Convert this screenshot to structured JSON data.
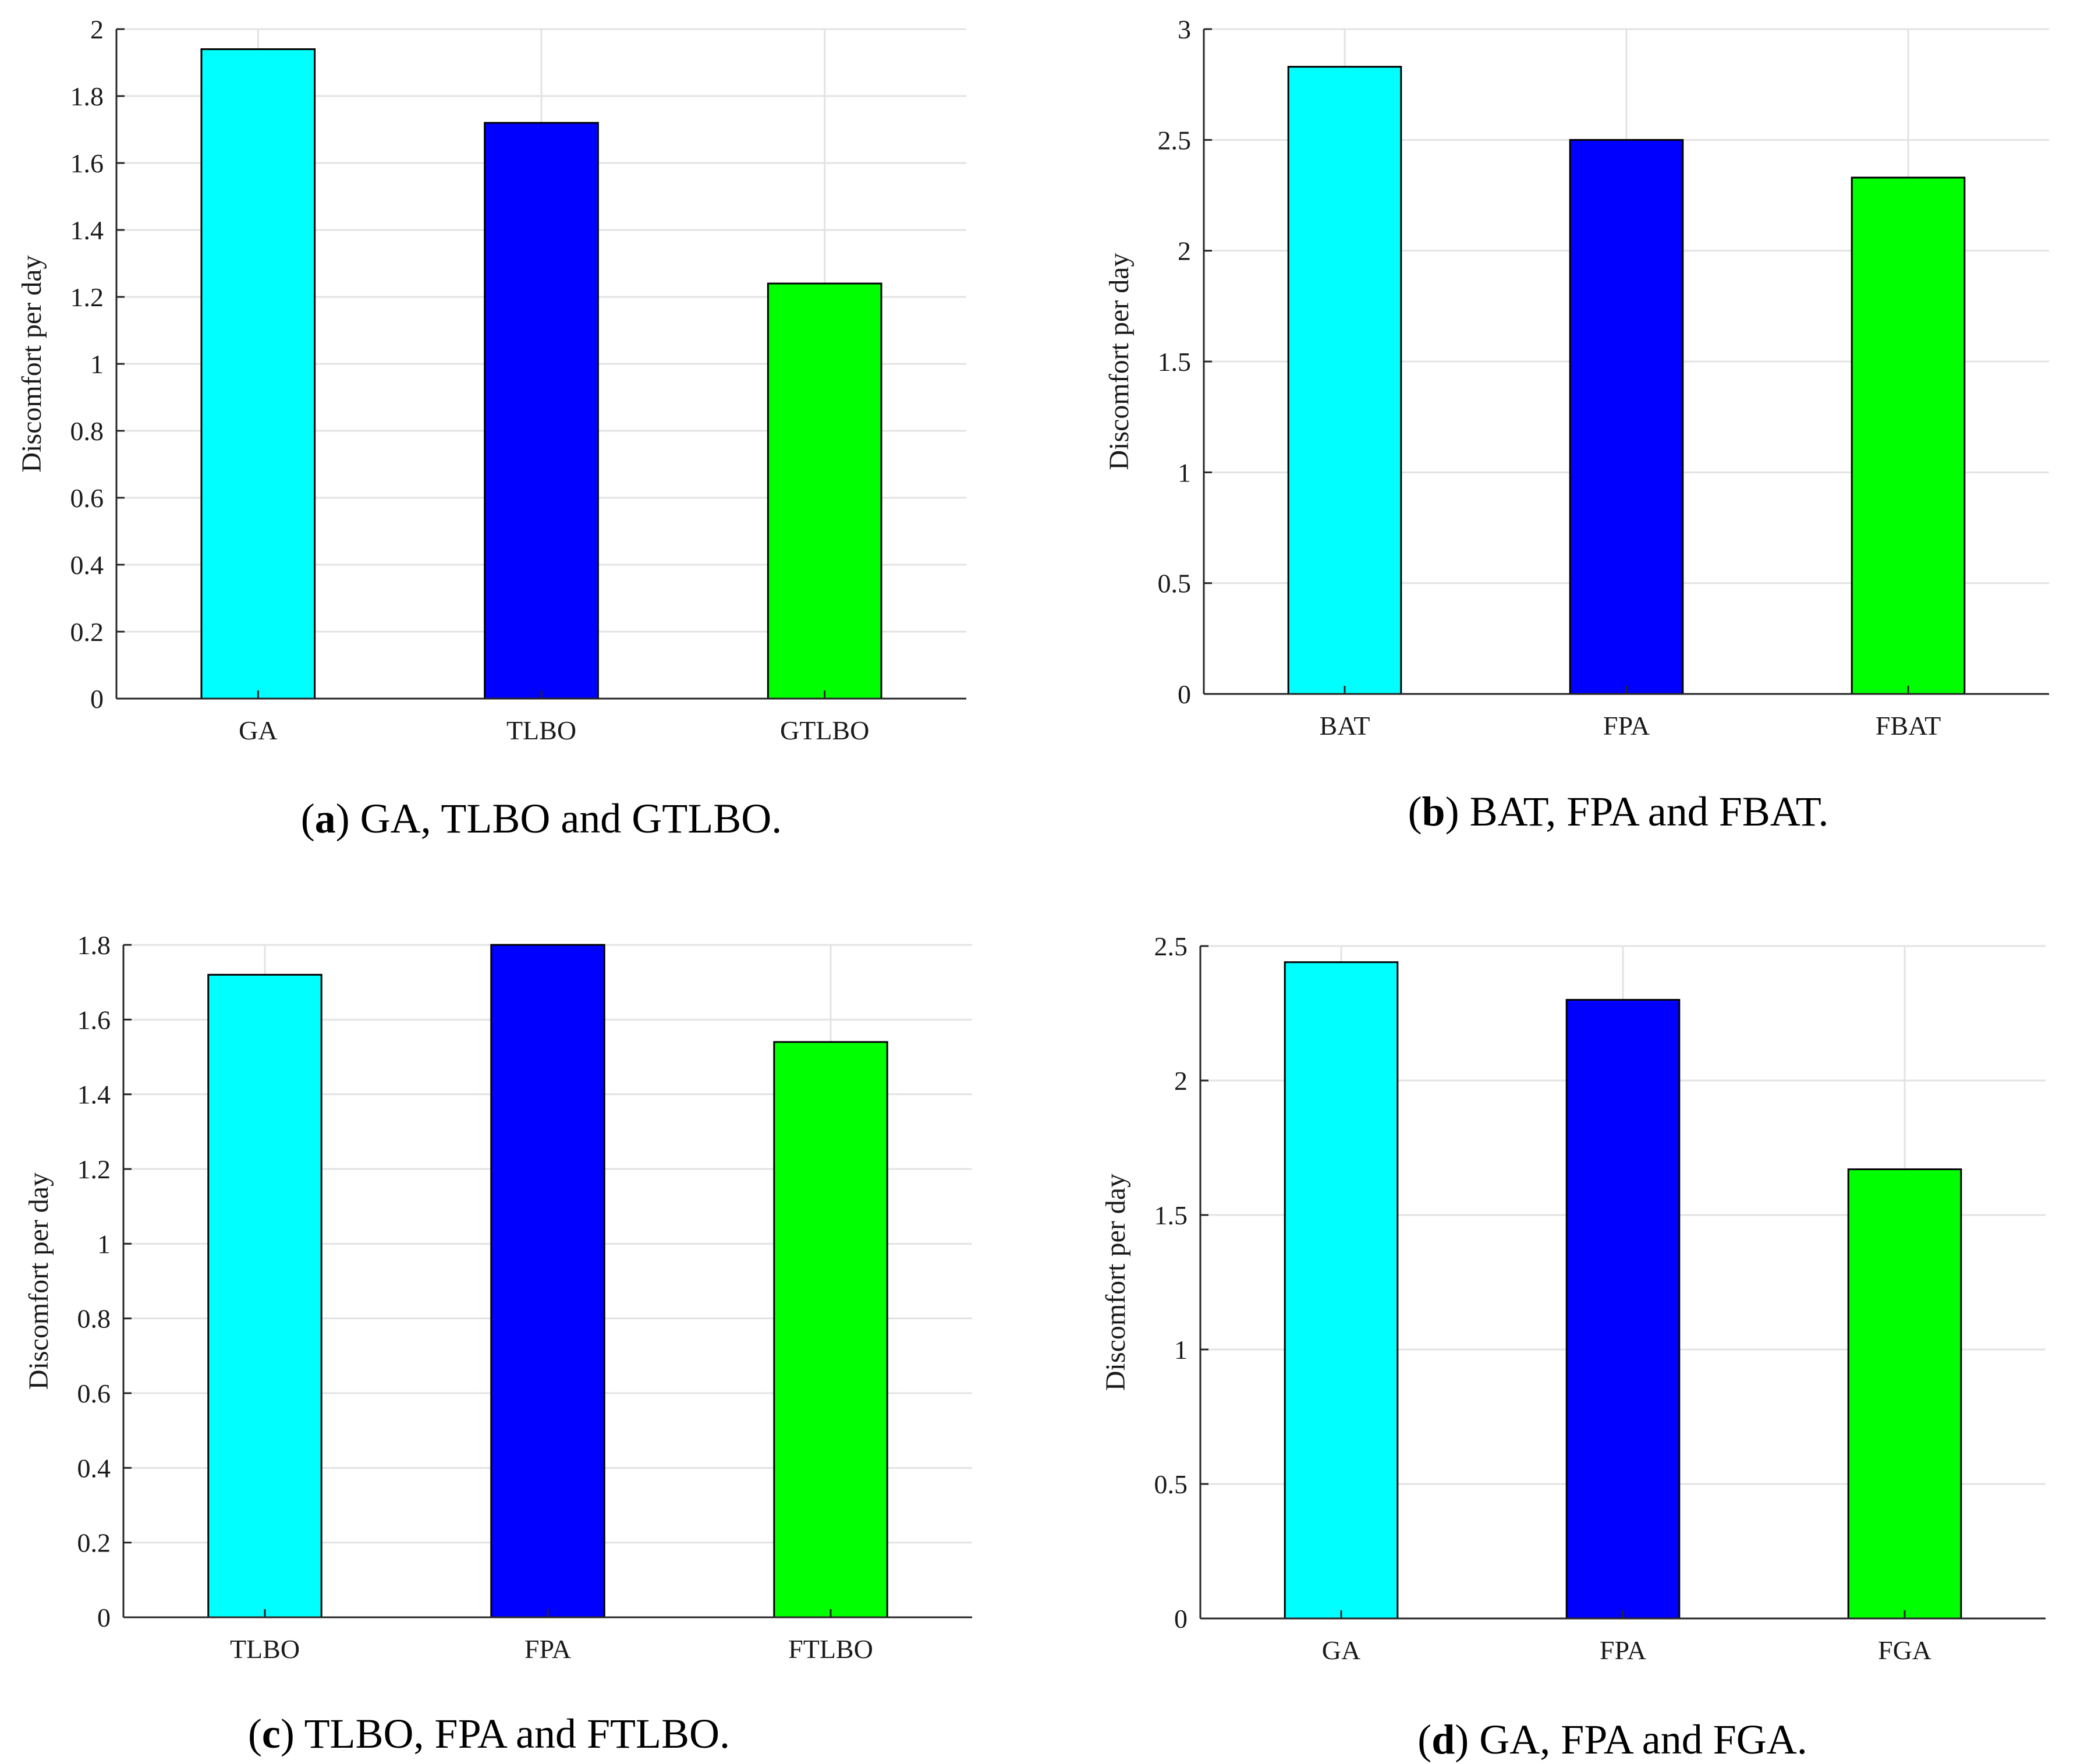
{
  "figure": {
    "panels": [
      {
        "letter": "a",
        "caption": " GA, TLBO and GTLBO."
      },
      {
        "letter": "b",
        "caption": " BAT, FPA and FBAT."
      },
      {
        "letter": "c",
        "caption": " TLBO, FPA and FTLBO."
      },
      {
        "letter": "d",
        "caption": " GA, FPA and FGA."
      }
    ]
  },
  "colors": {
    "cyan": "#00FFFF",
    "blue": "#0000FF",
    "green": "#00FF00",
    "grid": "#e3e3e3",
    "axis": "#262626"
  },
  "chart_data": [
    {
      "type": "bar",
      "categories": [
        "GA",
        "TLBO",
        "GTLBO"
      ],
      "values": [
        1.94,
        1.72,
        1.24
      ],
      "bar_colors": [
        "#00FFFF",
        "#0000FF",
        "#00FF00"
      ],
      "title": "",
      "xlabel": "",
      "ylabel": "Discomfort per day",
      "ylim": [
        0,
        2
      ],
      "yticks": [
        0,
        0.2,
        0.4,
        0.6,
        0.8,
        1,
        1.2,
        1.4,
        1.6,
        1.8,
        2
      ],
      "ytick_labels": [
        "0",
        "0.2",
        "0.4",
        "0.6",
        "0.8",
        "1",
        "1.2",
        "1.4",
        "1.6",
        "1.8",
        "2"
      ],
      "grid": true
    },
    {
      "type": "bar",
      "categories": [
        "BAT",
        "FPA",
        "FBAT"
      ],
      "values": [
        2.83,
        2.5,
        2.33
      ],
      "bar_colors": [
        "#00FFFF",
        "#0000FF",
        "#00FF00"
      ],
      "title": "",
      "xlabel": "",
      "ylabel": "Discomfort per day",
      "ylim": [
        0,
        3
      ],
      "yticks": [
        0,
        0.5,
        1,
        1.5,
        2,
        2.5,
        3
      ],
      "ytick_labels": [
        "0",
        "0.5",
        "1",
        "1.5",
        "2",
        "2.5",
        "3"
      ],
      "grid": true
    },
    {
      "type": "bar",
      "categories": [
        "TLBO",
        "FPA",
        "FTLBO"
      ],
      "values": [
        1.72,
        1.8,
        1.54
      ],
      "bar_colors": [
        "#00FFFF",
        "#0000FF",
        "#00FF00"
      ],
      "title": "",
      "xlabel": "",
      "ylabel": "Discomfort per day",
      "ylim": [
        0,
        1.8
      ],
      "yticks": [
        0,
        0.2,
        0.4,
        0.6,
        0.8,
        1,
        1.2,
        1.4,
        1.6,
        1.8
      ],
      "ytick_labels": [
        "0",
        "0.2",
        "0.4",
        "0.6",
        "0.8",
        "1",
        "1.2",
        "1.4",
        "1.6",
        "1.8"
      ],
      "grid": true
    },
    {
      "type": "bar",
      "categories": [
        "GA",
        "FPA",
        "FGA"
      ],
      "values": [
        2.44,
        2.3,
        1.67
      ],
      "bar_colors": [
        "#00FFFF",
        "#0000FF",
        "#00FF00"
      ],
      "title": "",
      "xlabel": "",
      "ylabel": "Discomfort per day",
      "ylim": [
        0,
        2.5
      ],
      "yticks": [
        0,
        0.5,
        1,
        1.5,
        2,
        2.5
      ],
      "ytick_labels": [
        "0",
        "0.5",
        "1",
        "1.5",
        "2",
        "2.5"
      ],
      "grid": true
    }
  ]
}
